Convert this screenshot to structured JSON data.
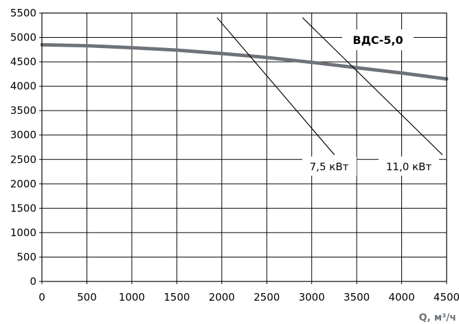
{
  "chart_data": {
    "type": "line",
    "title": "ВДС-5,0",
    "xlabel": "Q, м³/ч",
    "ylabel": "",
    "xlim": [
      0,
      4500
    ],
    "ylim": [
      0,
      5500
    ],
    "x_ticks": [
      0,
      500,
      1000,
      1500,
      2000,
      2500,
      3000,
      3500,
      4000,
      4500
    ],
    "y_ticks": [
      0,
      500,
      1000,
      1500,
      2000,
      2500,
      3000,
      3500,
      4000,
      4500,
      5000,
      5500
    ],
    "grid": true,
    "series": [
      {
        "name": "ВДС-5,0",
        "color": "#6d7378",
        "points": [
          [
            0,
            4850
          ],
          [
            500,
            4830
          ],
          [
            1000,
            4790
          ],
          [
            1500,
            4740
          ],
          [
            2000,
            4670
          ],
          [
            2500,
            4590
          ],
          [
            3000,
            4490
          ],
          [
            3500,
            4380
          ],
          [
            4000,
            4270
          ],
          [
            4500,
            4150
          ]
        ]
      },
      {
        "name": "7,5 кВт",
        "color": "#000000",
        "points": [
          [
            1950,
            5400
          ],
          [
            3250,
            2600
          ]
        ]
      },
      {
        "name": "11,0 кВт",
        "color": "#000000",
        "points": [
          [
            2900,
            5400
          ],
          [
            4450,
            2600
          ]
        ]
      }
    ]
  }
}
